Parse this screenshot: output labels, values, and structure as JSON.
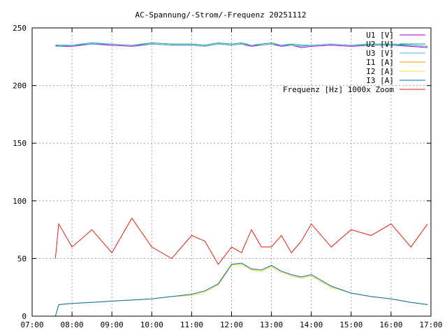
{
  "chart_data": {
    "type": "line",
    "title": "AC-Spannung/-Strom/-Frequenz 20251112",
    "xlabel": "",
    "ylabel": "",
    "xlim": [
      "07:00",
      "17:00"
    ],
    "ylim": [
      0,
      250
    ],
    "x_ticks": [
      "07:00",
      "08:00",
      "09:00",
      "10:00",
      "11:00",
      "12:00",
      "13:00",
      "14:00",
      "15:00",
      "16:00",
      "17:00"
    ],
    "y_ticks": [
      0,
      50,
      100,
      150,
      200,
      250
    ],
    "grid": true,
    "legend_position": "top-right",
    "x": [
      "07:35",
      "07:40",
      "08:00",
      "08:30",
      "09:00",
      "09:30",
      "10:00",
      "10:30",
      "11:00",
      "11:20",
      "11:40",
      "12:00",
      "12:15",
      "12:30",
      "12:45",
      "13:00",
      "13:15",
      "13:30",
      "13:45",
      "14:00",
      "14:30",
      "15:00",
      "15:30",
      "16:00",
      "16:30",
      "16:55"
    ],
    "series": [
      {
        "name": "U1 [V]",
        "color": "#9400d3",
        "values": [
          235,
          234,
          234,
          236,
          235,
          234,
          236,
          235,
          235,
          234,
          236,
          235,
          236,
          234,
          235,
          236,
          234,
          235,
          233,
          234,
          235,
          234,
          235,
          235,
          234,
          233
        ]
      },
      {
        "name": "U2 [V]",
        "color": "#009e73",
        "values": [
          235,
          235,
          235,
          237,
          236,
          235,
          237,
          236,
          236,
          235,
          237,
          236,
          237,
          235,
          236,
          237,
          235,
          236,
          235,
          235,
          236,
          235,
          236,
          236,
          235,
          234
        ]
      },
      {
        "name": "U3 [V]",
        "color": "#56b4e9",
        "values": [
          234,
          234,
          235,
          236,
          236,
          235,
          236,
          235,
          235,
          234,
          236,
          235,
          236,
          235,
          235,
          236,
          235,
          235,
          234,
          235,
          236,
          235,
          235,
          235,
          235,
          234
        ]
      },
      {
        "name": "I1 [A]",
        "color": "#e69f00",
        "values": [
          0,
          10,
          11,
          12,
          13,
          14,
          15,
          17,
          18,
          21,
          27,
          44,
          45,
          40,
          39,
          43,
          38,
          35,
          33,
          35,
          25,
          20,
          17,
          15,
          12,
          10
        ]
      },
      {
        "name": "I2 [A]",
        "color": "#f0e442",
        "values": [
          0,
          10,
          11,
          12,
          13,
          14,
          15,
          17,
          18,
          21,
          27,
          44,
          45,
          40,
          39,
          43,
          38,
          35,
          33,
          35,
          25,
          20,
          17,
          15,
          12,
          10
        ]
      },
      {
        "name": "I3 [A]",
        "color": "#0072b2",
        "values": [
          0,
          10,
          11,
          12,
          13,
          14,
          15,
          17,
          19,
          22,
          28,
          45,
          46,
          41,
          40,
          44,
          39,
          36,
          34,
          36,
          26,
          20,
          17,
          15,
          12,
          10
        ]
      },
      {
        "name": "Frequenz [Hz] 1000x Zoom",
        "color": "#e51e10",
        "values": [
          50,
          80,
          60,
          75,
          55,
          85,
          60,
          50,
          70,
          65,
          45,
          60,
          55,
          75,
          60,
          60,
          70,
          55,
          65,
          80,
          60,
          75,
          70,
          80,
          60,
          80
        ]
      }
    ]
  }
}
